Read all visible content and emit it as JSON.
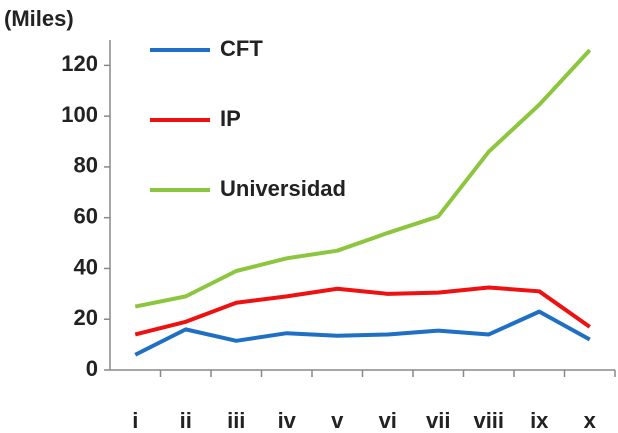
{
  "chart_data": {
    "type": "line",
    "title": "(Miles)",
    "categories": [
      "i",
      "ii",
      "iii",
      "iv",
      "v",
      "vi",
      "vii",
      "viii",
      "ix",
      "x"
    ],
    "series": [
      {
        "name": "CFT",
        "color": "#1f6fc5",
        "values": [
          6,
          16,
          11.5,
          14.5,
          13.5,
          14,
          15.5,
          14,
          23,
          12
        ]
      },
      {
        "name": "IP",
        "color": "#ee1111",
        "values": [
          14,
          19,
          26.5,
          29,
          32,
          30,
          30.5,
          32.5,
          31,
          17
        ]
      },
      {
        "name": "Universidad",
        "color": "#8cc63e",
        "values": [
          25,
          29,
          39,
          44,
          47,
          54,
          60.5,
          86,
          104.5,
          126
        ]
      }
    ],
    "ylim": [
      0,
      130
    ],
    "yticks": [
      0,
      20,
      40,
      60,
      80,
      100,
      120
    ],
    "grid": false
  }
}
